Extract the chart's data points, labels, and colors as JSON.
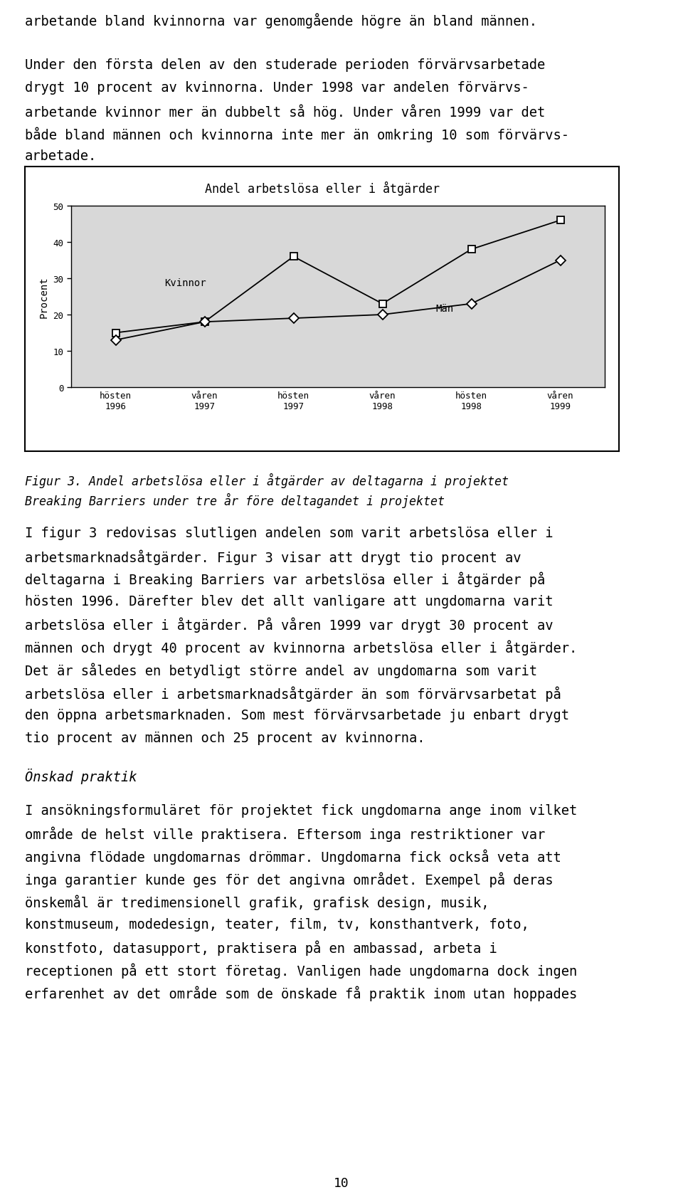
{
  "title": "Andel arbetslösa eller i åtgärder",
  "ylabel": "Procent",
  "xlabels": [
    "hösten\n1996",
    "våren\n1997",
    "hösten\n1997",
    "våren\n1998",
    "hösten\n1998",
    "våren\n1999"
  ],
  "kvinnor_values": [
    15,
    18,
    36,
    23,
    38,
    46
  ],
  "man_values": [
    13,
    18,
    19,
    20,
    23,
    35
  ],
  "ylim": [
    0,
    50
  ],
  "yticks": [
    0,
    10,
    20,
    30,
    40,
    50
  ],
  "kvinnor_label": "Kvinnor",
  "man_label": "Män",
  "line_color": "#000000",
  "background_color": "#ffffff",
  "plot_bg_color": "#d8d8d8",
  "title_fontsize": 12,
  "label_fontsize": 10,
  "tick_fontsize": 9,
  "annotation_fontsize": 10,
  "body_fontsize": 13.5,
  "body_text_lines": [
    "arbetande bland kvinnorna var genomgående högre än bland männen.",
    "",
    "Under den första delen av den studerade perioden förvärvsarbetade",
    "drygt 10 procent av kvinnorna. Under 1998 var andelen förvärvs-",
    "arbetande kvinnor mer än dubbelt så hög. Under våren 1999 var det",
    "både bland männen och kvinnorna inte mer än omkring 10 som förvärvs-",
    "arbetade."
  ],
  "figur_caption_lines": [
    "Figur 3. Andel arbetslösa eller i åtgärder av deltagarna i projektet",
    "Breaking Barriers under tre år före deltagandet i projektet"
  ],
  "body_text2_lines": [
    "I figur 3 redovisas slutligen andelen som varit arbetslösa eller i",
    "arbetsmarknadsåtgärder. Figur 3 visar att drygt tio procent av",
    "deltagarna i Breaking Barriers var arbetslösa eller i åtgärder på",
    "hösten 1996. Därefter blev det allt vanligare att ungdomarna varit",
    "arbetslösa eller i åtgärder. På våren 1999 var drygt 30 procent av",
    "männen och drygt 40 procent av kvinnorna arbetslösa eller i åtgärder.",
    "Det är således en betydligt större andel av ungdomarna som varit",
    "arbetslösa eller i arbetsmarknadsåtgärder än som förvärvsarbetat på",
    "den öppna arbetsmarknaden. Som mest förvärvsarbetade ju enbart drygt",
    "tio procent av männen och 25 procent av kvinnorna."
  ],
  "onskad_header": "Önskad praktik",
  "body_text3_lines": [
    "I ansökningsformuläret för projektet fick ungdomarna ange inom vilket",
    "område de helst ville praktisera. Eftersom inga restriktioner var",
    "angivna flödade ungdomarnas drömmar. Ungdomarna fick också veta att",
    "inga garantier kunde ges för det angivna området. Exempel på deras",
    "önskemål är tredimensionell grafik, grafisk design, musik,",
    "konstmuseum, modedesign, teater, film, tv, konsthantverk, foto,",
    "konstfoto, datasupport, praktisera på en ambassad, arbeta i",
    "receptionen på ett stort företag. Vanligen hade ungdomarna dock ingen",
    "erfarenhet av det område som de önskade få praktik inom utan hoppades"
  ],
  "page_number": "10"
}
